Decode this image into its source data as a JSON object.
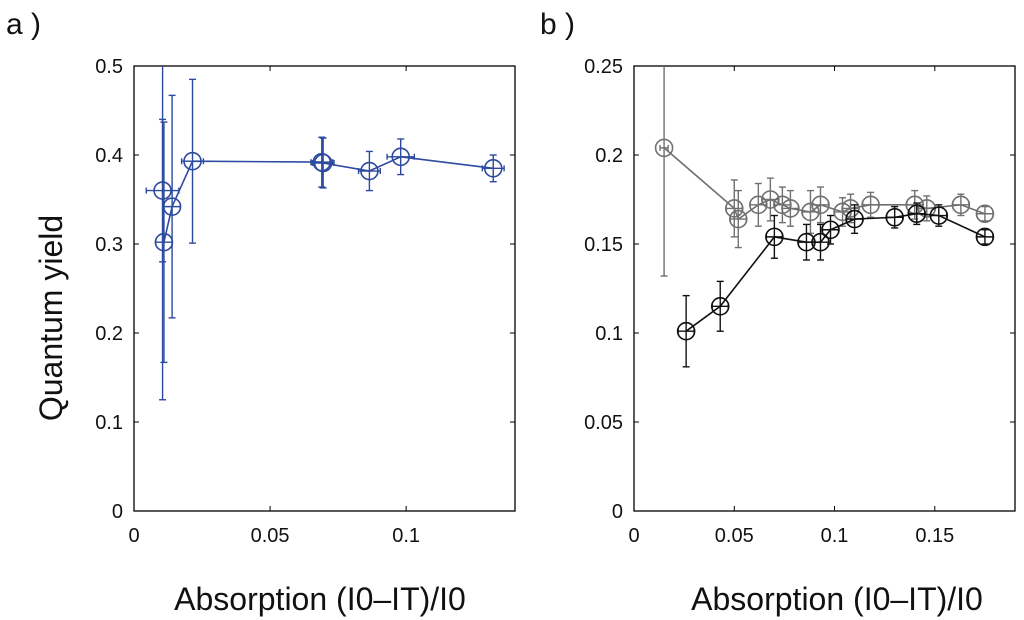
{
  "chart_data": [
    {
      "type": "line",
      "panel_label": "a )",
      "ylabel": "Quantum yield",
      "xlabel": "Absorption (I0–IT)/I0",
      "xlim": [
        0,
        0.14
      ],
      "ylim": [
        0,
        0.5
      ],
      "xticks": [
        0,
        0.05,
        0.1
      ],
      "xtick_labels": [
        "0",
        "0.05",
        "0.1"
      ],
      "yticks": [
        0,
        0.1,
        0.2,
        0.3,
        0.4,
        0.5
      ],
      "ytick_labels": [
        "0",
        "0.1",
        "0.2",
        "0.3",
        "0.4",
        "0.5"
      ],
      "series": [
        {
          "name": "blue",
          "color": "#2d4aa0",
          "points": [
            {
              "x": 0.0105,
              "y": 0.36,
              "yerr": 0.08,
              "xerr": 0.006
            },
            {
              "x": 0.011,
              "y": 0.302,
              "yerr": 0.135,
              "xerr": 0.003
            },
            {
              "x": 0.014,
              "y": 0.342,
              "yerr": 0.125,
              "xerr": 0.003
            },
            {
              "x": 0.0215,
              "y": 0.393,
              "yerr": 0.092,
              "xerr": 0.004
            },
            {
              "x": 0.069,
              "y": 0.392,
              "yerr": 0.028,
              "xerr": 0.004
            },
            {
              "x": 0.0695,
              "y": 0.391,
              "yerr": 0.028,
              "xerr": 0.004
            },
            {
              "x": 0.0865,
              "y": 0.382,
              "yerr": 0.022,
              "xerr": 0.004
            },
            {
              "x": 0.098,
              "y": 0.398,
              "yerr": 0.02,
              "xerr": 0.005
            },
            {
              "x": 0.132,
              "y": 0.385,
              "yerr": 0.015,
              "xerr": 0.004
            }
          ],
          "extra_error_bar": {
            "x": 0.0105,
            "y": 0.315,
            "yerr": 0.19
          }
        }
      ]
    },
    {
      "type": "line",
      "panel_label": "b )",
      "xlabel": "Absorption (I0–IT)/I0",
      "xlim": [
        0,
        0.19
      ],
      "ylim": [
        0,
        0.25
      ],
      "xticks": [
        0,
        0.05,
        0.1,
        0.15
      ],
      "xtick_labels": [
        "0",
        "0.05",
        "0.1",
        "0.15"
      ],
      "yticks": [
        0,
        0.05,
        0.1,
        0.15,
        0.2,
        0.25
      ],
      "ytick_labels": [
        "0",
        "0.05",
        "0.1",
        "0.15",
        "0.2",
        "0.25"
      ],
      "series": [
        {
          "name": "gray",
          "color": "#707070",
          "points": [
            {
              "x": 0.015,
              "y": 0.204,
              "yerr": 0.072,
              "xerr": 0.002
            },
            {
              "x": 0.05,
              "y": 0.17,
              "yerr": 0.016,
              "xerr": 0.004
            },
            {
              "x": 0.052,
              "y": 0.164,
              "yerr": 0.016,
              "xerr": 0.004
            },
            {
              "x": 0.062,
              "y": 0.172,
              "yerr": 0.012,
              "xerr": 0.004
            },
            {
              "x": 0.068,
              "y": 0.175,
              "yerr": 0.012,
              "xerr": 0.004
            },
            {
              "x": 0.074,
              "y": 0.172,
              "yerr": 0.01,
              "xerr": 0.004
            },
            {
              "x": 0.078,
              "y": 0.17,
              "yerr": 0.01,
              "xerr": 0.004
            },
            {
              "x": 0.088,
              "y": 0.168,
              "yerr": 0.012,
              "xerr": 0.004
            },
            {
              "x": 0.093,
              "y": 0.172,
              "yerr": 0.01,
              "xerr": 0.004
            },
            {
              "x": 0.104,
              "y": 0.168,
              "yerr": 0.008,
              "xerr": 0.004
            },
            {
              "x": 0.108,
              "y": 0.17,
              "yerr": 0.008,
              "xerr": 0.004
            },
            {
              "x": 0.118,
              "y": 0.172,
              "yerr": 0.007,
              "xerr": 0.004
            },
            {
              "x": 0.14,
              "y": 0.172,
              "yerr": 0.008,
              "xerr": 0.004
            },
            {
              "x": 0.146,
              "y": 0.17,
              "yerr": 0.007,
              "xerr": 0.004
            },
            {
              "x": 0.163,
              "y": 0.172,
              "yerr": 0.006,
              "xerr": 0.004
            },
            {
              "x": 0.175,
              "y": 0.167,
              "yerr": 0.004,
              "xerr": 0.004
            }
          ]
        },
        {
          "name": "black",
          "color": "#111111",
          "points": [
            {
              "x": 0.026,
              "y": 0.101,
              "yerr": 0.02,
              "xerr": 0.004
            },
            {
              "x": 0.043,
              "y": 0.115,
              "yerr": 0.014,
              "xerr": 0.004
            },
            {
              "x": 0.07,
              "y": 0.154,
              "yerr": 0.012,
              "xerr": 0.004
            },
            {
              "x": 0.086,
              "y": 0.151,
              "yerr": 0.01,
              "xerr": 0.004
            },
            {
              "x": 0.093,
              "y": 0.151,
              "yerr": 0.01,
              "xerr": 0.004
            },
            {
              "x": 0.098,
              "y": 0.158,
              "yerr": 0.008,
              "xerr": 0.004
            },
            {
              "x": 0.11,
              "y": 0.164,
              "yerr": 0.008,
              "xerr": 0.004
            },
            {
              "x": 0.13,
              "y": 0.165,
              "yerr": 0.006,
              "xerr": 0.004
            },
            {
              "x": 0.141,
              "y": 0.167,
              "yerr": 0.006,
              "xerr": 0.004
            },
            {
              "x": 0.152,
              "y": 0.166,
              "yerr": 0.006,
              "xerr": 0.004
            },
            {
              "x": 0.175,
              "y": 0.154,
              "yerr": 0.004,
              "xerr": 0.004
            }
          ]
        }
      ]
    }
  ]
}
